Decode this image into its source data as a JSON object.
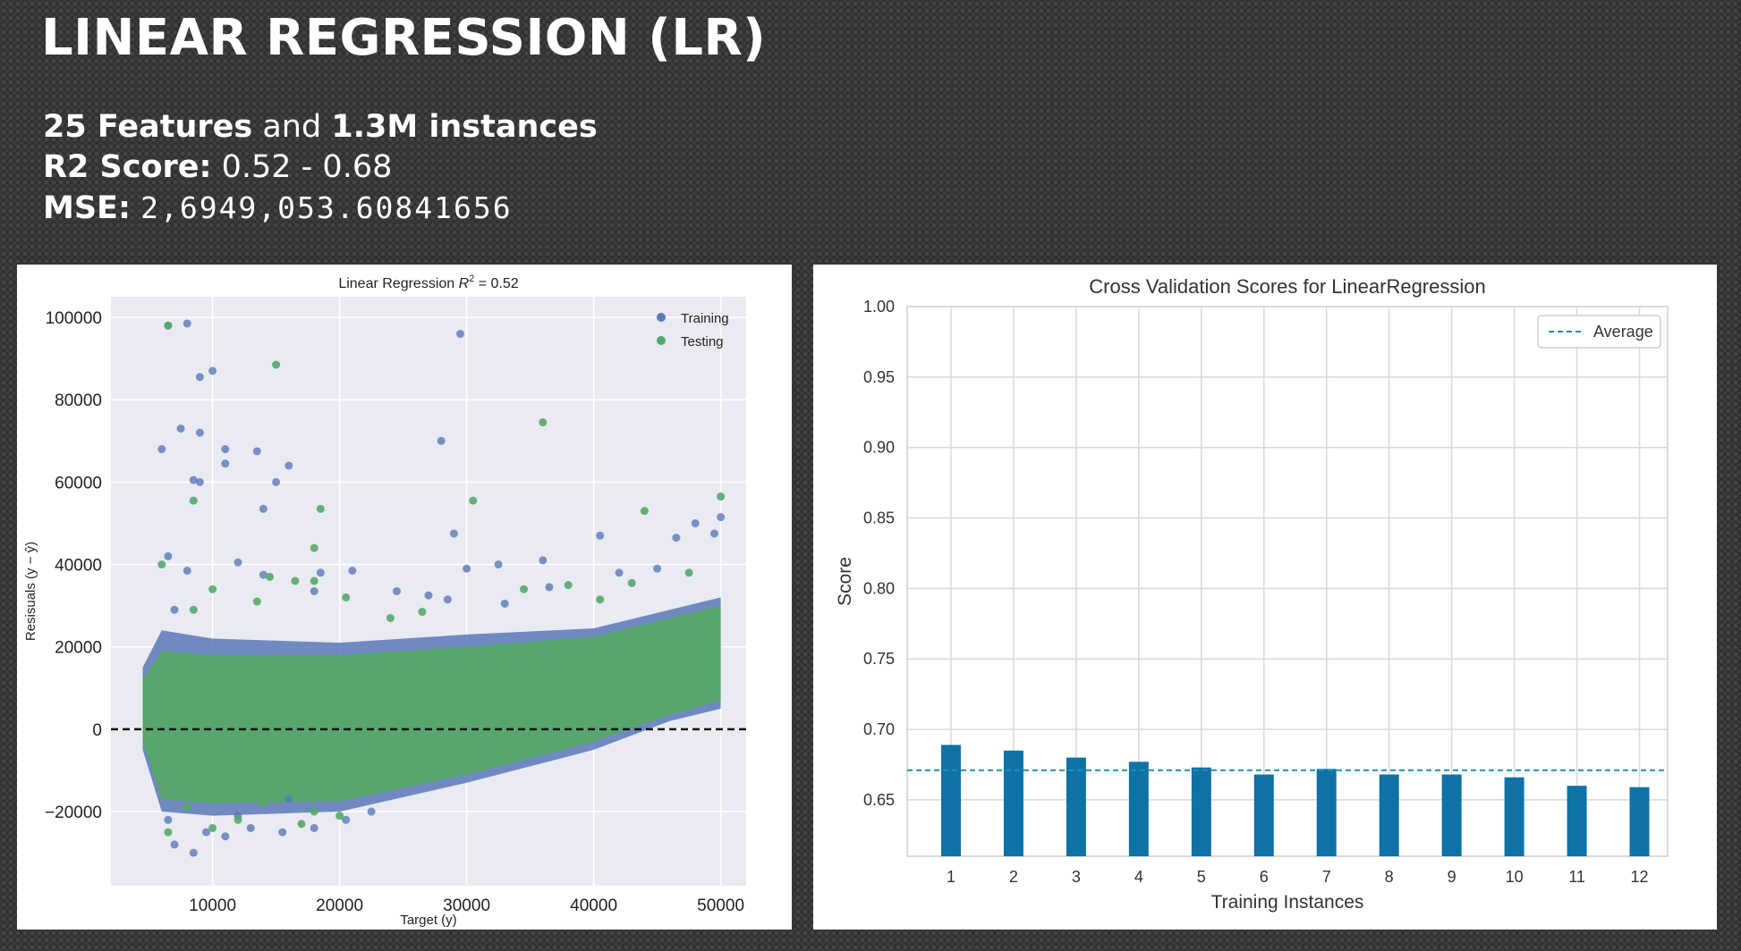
{
  "slide": {
    "title": "LINEAR REGRESSION (LR)",
    "features_count": "25 Features",
    "and_word": "and",
    "instances": "1.3M instances",
    "r2_label": "R2 Score:",
    "r2_value": "0.52 - 0.68",
    "mse_label": "MSE:",
    "mse_value": "2,6949,053.60841656"
  },
  "chart_data": [
    {
      "type": "scatter",
      "title_prefix": "Linear Regression ",
      "title_r2": "R",
      "title_sup": "2",
      "title_suffix": " = 0.52",
      "xlabel": "Target (y)",
      "ylabel": "Resisuals (y − ŷ)",
      "xlim": [
        2000,
        52000
      ],
      "ylim": [
        -38000,
        105000
      ],
      "xticks": [
        10000,
        20000,
        30000,
        40000,
        50000
      ],
      "yticks": [
        -20000,
        0,
        20000,
        40000,
        60000,
        80000,
        100000
      ],
      "xtick_labels": [
        "10000",
        "20000",
        "30000",
        "40000",
        "50000"
      ],
      "ytick_labels": [
        "−20000",
        "0",
        "20000",
        "40000",
        "60000",
        "80000",
        "100000"
      ],
      "grid": true,
      "legend_position": "top-right",
      "zero_line": 0,
      "series": [
        {
          "name": "Training",
          "color": "#5a78b8",
          "points": [
            [
              6500,
              98000
            ],
            [
              8000,
              98500
            ],
            [
              29500,
              96000
            ],
            [
              9000,
              85500
            ],
            [
              10000,
              87000
            ],
            [
              6000,
              68000
            ],
            [
              7500,
              73000
            ],
            [
              9000,
              72000
            ],
            [
              11000,
              68000
            ],
            [
              11000,
              64500
            ],
            [
              13500,
              67500
            ],
            [
              16000,
              64000
            ],
            [
              8500,
              60500
            ],
            [
              9000,
              60000
            ],
            [
              15000,
              60000
            ],
            [
              14000,
              53500
            ],
            [
              28000,
              70000
            ],
            [
              29000,
              47500
            ],
            [
              30000,
              39000
            ],
            [
              32500,
              40000
            ],
            [
              36000,
              41000
            ],
            [
              40500,
              47000
            ],
            [
              48000,
              50000
            ],
            [
              50000,
              51500
            ],
            [
              49500,
              47500
            ],
            [
              46500,
              46500
            ],
            [
              8000,
              38500
            ],
            [
              12000,
              40500
            ],
            [
              14000,
              37500
            ],
            [
              18000,
              33500
            ],
            [
              18500,
              38000
            ],
            [
              21000,
              38500
            ],
            [
              6500,
              42000
            ],
            [
              24500,
              33500
            ],
            [
              27000,
              32500
            ],
            [
              28500,
              31500
            ],
            [
              33000,
              30500
            ],
            [
              36500,
              34500
            ],
            [
              42000,
              38000
            ],
            [
              45000,
              39000
            ],
            [
              7000,
              29000
            ],
            [
              8500,
              -30000
            ],
            [
              7000,
              -28000
            ],
            [
              6500,
              -22000
            ],
            [
              9500,
              -25000
            ],
            [
              11000,
              -26000
            ],
            [
              13000,
              -24000
            ],
            [
              15500,
              -25000
            ],
            [
              18000,
              -24000
            ],
            [
              16000,
              -17000
            ],
            [
              20500,
              -22000
            ],
            [
              22500,
              -20000
            ],
            [
              12000,
              -21000
            ]
          ]
        },
        {
          "name": "Testing",
          "color": "#55a868",
          "points": [
            [
              6500,
              98000
            ],
            [
              15000,
              88500
            ],
            [
              36000,
              74500
            ],
            [
              8500,
              55500
            ],
            [
              18500,
              53500
            ],
            [
              30500,
              55500
            ],
            [
              50000,
              56500
            ],
            [
              44000,
              53000
            ],
            [
              18000,
              44000
            ],
            [
              6000,
              40000
            ],
            [
              10000,
              34000
            ],
            [
              14500,
              37000
            ],
            [
              16500,
              36000
            ],
            [
              18000,
              36000
            ],
            [
              20500,
              32000
            ],
            [
              8500,
              29000
            ],
            [
              24000,
              27000
            ],
            [
              34500,
              34000
            ],
            [
              38000,
              35000
            ],
            [
              40500,
              31500
            ],
            [
              43000,
              35500
            ],
            [
              47500,
              38000
            ],
            [
              13500,
              31000
            ],
            [
              26500,
              28500
            ],
            [
              6500,
              -25000
            ],
            [
              10000,
              -24000
            ],
            [
              12000,
              -22000
            ],
            [
              17000,
              -23000
            ],
            [
              18000,
              -20000
            ],
            [
              20000,
              -21000
            ],
            [
              8000,
              -19000
            ],
            [
              14000,
              -18000
            ]
          ]
        }
      ],
      "band": {
        "training_upper": [
          [
            4500,
            15000
          ],
          [
            6000,
            24000
          ],
          [
            10000,
            22000
          ],
          [
            20000,
            21000
          ],
          [
            30000,
            23000
          ],
          [
            40000,
            24500
          ],
          [
            50000,
            32000
          ]
        ],
        "training_lower": [
          [
            4500,
            -5000
          ],
          [
            6000,
            -20000
          ],
          [
            10000,
            -21000
          ],
          [
            20000,
            -20000
          ],
          [
            30000,
            -13000
          ],
          [
            40000,
            -5000
          ],
          [
            46000,
            2000
          ],
          [
            50000,
            5000
          ]
        ],
        "testing_upper": [
          [
            4500,
            12000
          ],
          [
            6000,
            19000
          ],
          [
            10000,
            18000
          ],
          [
            20000,
            18000
          ],
          [
            30000,
            20000
          ],
          [
            40000,
            22500
          ],
          [
            50000,
            30000
          ]
        ],
        "testing_lower": [
          [
            4500,
            -3000
          ],
          [
            6000,
            -17000
          ],
          [
            10000,
            -18000
          ],
          [
            20000,
            -17500
          ],
          [
            30000,
            -11000
          ],
          [
            40000,
            -3000
          ],
          [
            46000,
            3500
          ],
          [
            50000,
            7000
          ]
        ]
      }
    },
    {
      "type": "bar",
      "title": "Cross Validation Scores for LinearRegression",
      "xlabel": "Training Instances",
      "ylabel": "Score",
      "categories": [
        "1",
        "2",
        "3",
        "4",
        "5",
        "6",
        "7",
        "8",
        "9",
        "10",
        "11",
        "12"
      ],
      "values": [
        0.689,
        0.685,
        0.68,
        0.677,
        0.673,
        0.668,
        0.672,
        0.668,
        0.668,
        0.666,
        0.66,
        0.659
      ],
      "average": 0.671,
      "average_label": "Average",
      "ylim": [
        0.61,
        1.0
      ],
      "yticks": [
        "1.00",
        "0.95",
        "0.90",
        "0.85",
        "0.80",
        "0.75",
        "0.70",
        "0.65"
      ],
      "ytick_values": [
        1.0,
        0.95,
        0.9,
        0.85,
        0.8,
        0.75,
        0.7,
        0.65
      ],
      "bar_color": "#0e72a6",
      "avg_color": "#1b93ad",
      "grid": true,
      "legend_position": "top-right"
    }
  ]
}
